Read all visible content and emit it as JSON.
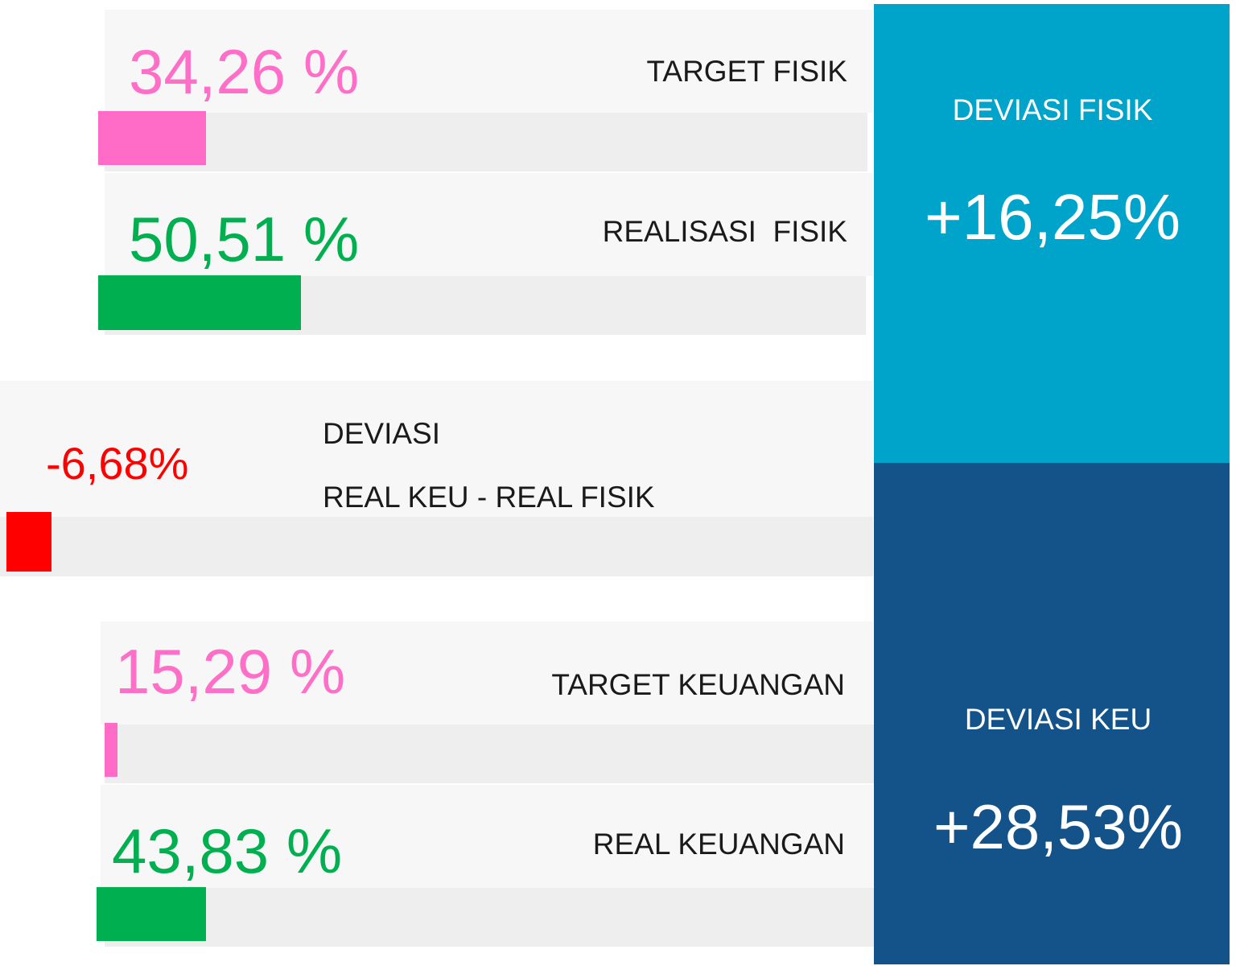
{
  "rows": [
    {
      "value": "34,26 %",
      "label": "TARGET FISIK"
    },
    {
      "value": "50,51 %",
      "label": "REALISASI  FISIK"
    },
    {
      "value": "15,29 %",
      "label": "TARGET KEUANGAN"
    },
    {
      "value": "43,83 %",
      "label": "REAL KEUANGAN"
    }
  ],
  "deviation": {
    "value": "-6,68%",
    "line1": "DEVIASI",
    "line2": "REAL KEU - REAL FISIK"
  },
  "summary": [
    {
      "title": "DEVIASI FISIK",
      "value": "+16,25%"
    },
    {
      "title": "DEVIASI KEU",
      "value": "+28,53%"
    }
  ]
}
